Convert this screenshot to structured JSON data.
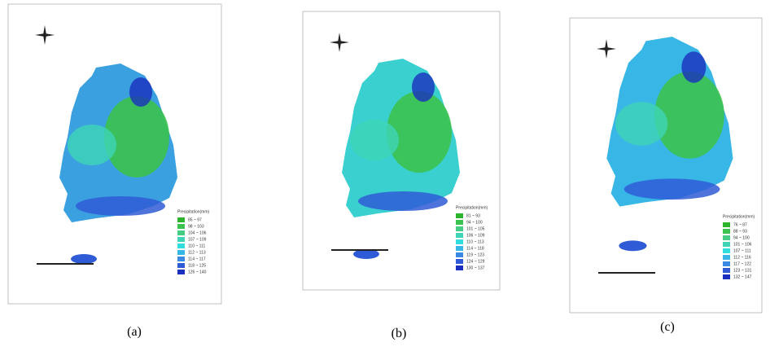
{
  "panels": [
    {
      "label": "(a)",
      "legend_title": "Precipitation(mm)",
      "legend": [
        {
          "label": "85 ~ 97",
          "color": "#2cb52c"
        },
        {
          "label": "98 ~ 103",
          "color": "#3cc24e"
        },
        {
          "label": "104 ~ 106",
          "color": "#45cc85"
        },
        {
          "label": "107 ~ 109",
          "color": "#3fd4b6"
        },
        {
          "label": "110 ~ 111",
          "color": "#30dede"
        },
        {
          "label": "112 ~ 113",
          "color": "#38b6e6"
        },
        {
          "label": "114 ~ 117",
          "color": "#3a8ae4"
        },
        {
          "label": "118 ~ 125",
          "color": "#2f5cd6"
        },
        {
          "label": "126 ~ 140",
          "color": "#1a2fbe"
        }
      ]
    },
    {
      "label": "(b)",
      "legend_title": "Precipitation(mm)",
      "legend": [
        {
          "label": "81 ~ 93",
          "color": "#2cb52c"
        },
        {
          "label": "94 ~ 100",
          "color": "#3cc24e"
        },
        {
          "label": "101 ~ 105",
          "color": "#45cc85"
        },
        {
          "label": "106 ~ 109",
          "color": "#3fd4b6"
        },
        {
          "label": "110 ~ 113",
          "color": "#30dede"
        },
        {
          "label": "114 ~ 118",
          "color": "#38b6e6"
        },
        {
          "label": "119 ~ 123",
          "color": "#3a8ae4"
        },
        {
          "label": "124 ~ 129",
          "color": "#2f5cd6"
        },
        {
          "label": "130 ~ 137",
          "color": "#1a2fbe"
        }
      ]
    },
    {
      "label": "(c)",
      "legend_title": "Precipitation(mm)",
      "legend": [
        {
          "label": "76 ~ 87",
          "color": "#2cb52c"
        },
        {
          "label": "88 ~ 93",
          "color": "#3cc24e"
        },
        {
          "label": "94 ~ 100",
          "color": "#45cc85"
        },
        {
          "label": "101 ~ 106",
          "color": "#3fd4b6"
        },
        {
          "label": "107 ~ 111",
          "color": "#30dede"
        },
        {
          "label": "112 ~ 116",
          "color": "#38b6e6"
        },
        {
          "label": "117 ~ 122",
          "color": "#3a8ae4"
        },
        {
          "label": "123 ~ 131",
          "color": "#2f5cd6"
        },
        {
          "label": "132 ~ 147",
          "color": "#1a2fbe"
        }
      ]
    }
  ]
}
